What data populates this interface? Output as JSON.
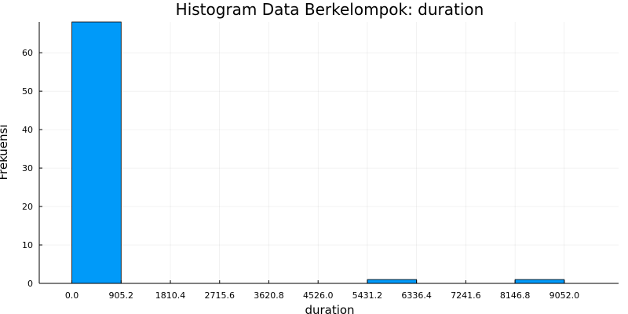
{
  "chart_data": {
    "type": "bar",
    "title": "Histogram Data Berkelompok: duration",
    "xlabel": "duration",
    "ylabel": "Frekuensi",
    "bin_edges": [
      0.0,
      905.2,
      1810.4,
      2715.6,
      3620.8,
      4526.0,
      5431.2,
      6336.4,
      7241.6,
      8146.8,
      9052.0
    ],
    "bins": [
      {
        "start": 0.0,
        "end": 905.2,
        "count": 68
      },
      {
        "start": 905.2,
        "end": 1810.4,
        "count": 0
      },
      {
        "start": 1810.4,
        "end": 2715.6,
        "count": 0
      },
      {
        "start": 2715.6,
        "end": 3620.8,
        "count": 0
      },
      {
        "start": 3620.8,
        "end": 4526.0,
        "count": 0
      },
      {
        "start": 4526.0,
        "end": 5431.2,
        "count": 0
      },
      {
        "start": 5431.2,
        "end": 6336.4,
        "count": 1
      },
      {
        "start": 6336.4,
        "end": 7241.6,
        "count": 0
      },
      {
        "start": 7241.6,
        "end": 8146.8,
        "count": 0
      },
      {
        "start": 8146.8,
        "end": 9052.0,
        "count": 1
      }
    ],
    "x_ticks": [
      "0.0",
      "905.2",
      "1810.4",
      "2715.6",
      "3620.8",
      "4526.0",
      "5431.2",
      "6336.4",
      "7241.6",
      "8146.8",
      "9052.0"
    ],
    "y_ticks": [
      0,
      10,
      20,
      30,
      40,
      50,
      60
    ],
    "xlim": [
      -600,
      10050
    ],
    "ylim": [
      0,
      68
    ],
    "grid": true,
    "legend": false,
    "bar_color": "#009AF9",
    "bar_edge_color": "#000000"
  }
}
